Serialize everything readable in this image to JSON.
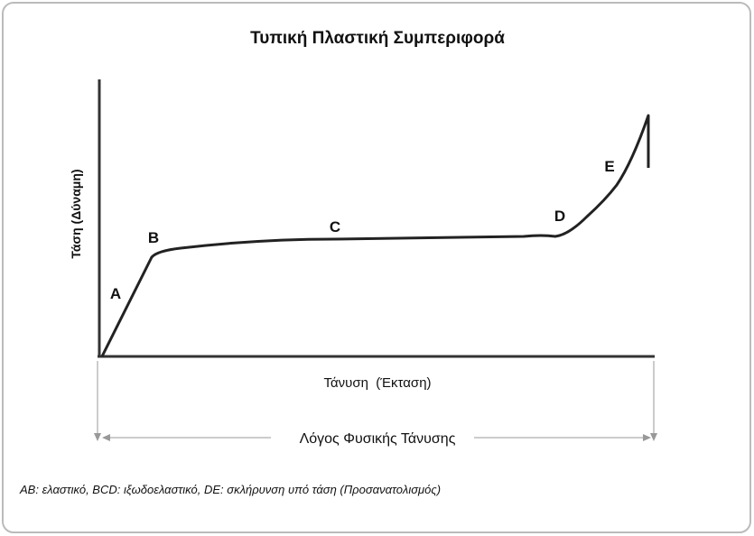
{
  "title": "Τυπική Πλαστική Συμπεριφορά",
  "y_axis_label": "Τάση (Δύναμη)",
  "x_axis_label": "Τάνυση  (Έκταση)",
  "points": [
    {
      "label": "A"
    },
    {
      "label": "B"
    },
    {
      "label": "C"
    },
    {
      "label": "D"
    },
    {
      "label": "E"
    }
  ],
  "ratio_label": "Λόγος Φυσικής Τάνυσης",
  "caption": "AB: ελαστικό, BCD: ιξωδοελαστικό, DE: σκλήρυνση υπό τάση (Προσανατολισμός)"
}
